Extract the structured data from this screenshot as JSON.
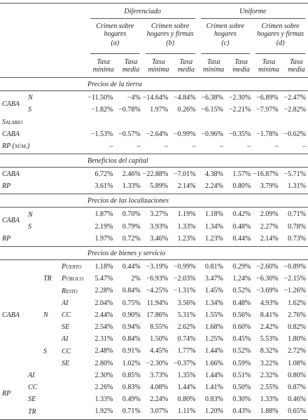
{
  "header": {
    "groups": [
      "Diferenciado",
      "Uniforme"
    ],
    "models": [
      {
        "title": "Crimen sobre hogares",
        "tag": "(a)"
      },
      {
        "title": "Crimen sobre hogares y firmas",
        "tag": "(b)"
      },
      {
        "title": "Crimen sobre hogares",
        "tag": "(c)"
      },
      {
        "title": "Crimen sobre hogares y firmas",
        "tag": "(d)"
      }
    ],
    "rates": [
      "Tasa mínima",
      "Tasa media"
    ]
  },
  "sections": [
    {
      "title": "Precios de la tierra",
      "groups": [
        {
          "label": "CABA",
          "children": [
            {
              "label": "N",
              "values": [
                "−11.50%",
                "−4%",
                "−14.64%",
                "−4.84%",
                "−6.38%",
                "−2.30%",
                "−6.89%",
                "−2.47%"
              ]
            },
            {
              "label": "S",
              "values": [
                "−1.82%",
                "−0.78%",
                "1.97%",
                "0.26%",
                "−6.15%",
                "−2.21%",
                "−7.97%",
                "−2.82%"
              ]
            }
          ]
        },
        {
          "label": "Salario"
        },
        {
          "label": "CABA",
          "values": [
            "−1.53%",
            "−0.57%",
            "−2.64%",
            "−0.99%",
            "−0.96%",
            "−0.35%",
            "−1.78%",
            "−0.62%"
          ]
        },
        {
          "label": "RP (núm.)",
          "values": [
            "–",
            "–",
            "–",
            "–",
            "–",
            "–",
            "–",
            "–"
          ]
        }
      ]
    },
    {
      "title": "Beneficios del capital",
      "groups": [
        {
          "label": "CABA",
          "values": [
            "6.72%",
            "2.46%",
            "−22.88%",
            "−7.01%",
            "4.38%",
            "1.57%",
            "−16.87%",
            "−5.71%"
          ]
        },
        {
          "label": "RP",
          "values": [
            "3.61%",
            "1.33%",
            "5.89%",
            "2.14%",
            "2.24%",
            "0.80%",
            "3.79%",
            "1.31%"
          ]
        }
      ]
    },
    {
      "title": "Precios de las localizaciones",
      "groups": [
        {
          "label": "CABA",
          "children": [
            {
              "label": "N",
              "values": [
                "1.87%",
                "0.70%",
                "3.27%",
                "1.19%",
                "1.18%",
                "0.42%",
                "2.09%",
                "0.71%"
              ]
            },
            {
              "label": "S",
              "values": [
                "2.19%",
                "0.79%",
                "3.93%",
                "1.33%",
                "1.34%",
                "0.48%",
                "2.27%",
                "0.78%"
              ]
            }
          ]
        },
        {
          "label": "RP",
          "values": [
            "1.97%",
            "0.72%",
            "3.46%",
            "1.23%",
            "1.23%",
            "0.44%",
            "2.14%",
            "0.73%"
          ]
        }
      ]
    },
    {
      "title": "Precios de bienes y servicio",
      "groups": [
        {
          "label": "CABA",
          "children": [
            {
              "label": "TR",
              "children": [
                {
                  "label": "Puerto",
                  "values": [
                    "1.18%",
                    "0.44%",
                    "−3.19%",
                    "−0.99%",
                    "0.81%",
                    "0.29%",
                    "−2.60%",
                    "−0.89%"
                  ]
                },
                {
                  "label": "Público",
                  "values": [
                    "5.47%",
                    "2%",
                    "−6.93%",
                    "−2.03%",
                    "3.47%",
                    "1.24%",
                    "−6.30%",
                    "−2.15%"
                  ]
                },
                {
                  "label": "Resto",
                  "values": [
                    "2.28%",
                    "0.84%",
                    "−4.25%",
                    "−1.31%",
                    "1.45%",
                    "0.52%",
                    "−3.69%",
                    "−1.26%"
                  ]
                }
              ]
            },
            {
              "label": "N",
              "children": [
                {
                  "label": "AI",
                  "values": [
                    "2.04%",
                    "0.75%",
                    "11.94%",
                    "3.56%",
                    "1.34%",
                    "0.48%",
                    "4.93%",
                    "1.62%"
                  ]
                },
                {
                  "label": "CC",
                  "values": [
                    "2.44%",
                    "0.90%",
                    "17.86%",
                    "5.31%",
                    "1.55%",
                    "0.56%",
                    "8.41%",
                    "2.76%"
                  ]
                },
                {
                  "label": "SE",
                  "values": [
                    "2.54%",
                    "0.94%",
                    "8.55%",
                    "2.62%",
                    "1.68%",
                    "0.60%",
                    "2.42%",
                    "0.82%"
                  ]
                }
              ]
            },
            {
              "label": "S",
              "children": [
                {
                  "label": "AI",
                  "values": [
                    "2.31%",
                    "0.84%",
                    "1.50%",
                    "0.74%",
                    "1.25%",
                    "0.45%",
                    "5.53%",
                    "1.80%"
                  ]
                },
                {
                  "label": "CC",
                  "values": [
                    "2.48%",
                    "0.91%",
                    "4.45%",
                    "1.77%",
                    "1.44%",
                    "0.52%",
                    "8.32%",
                    "2.72%"
                  ]
                },
                {
                  "label": "SE",
                  "values": [
                    "2.80%",
                    "1.02%",
                    "−2.30%",
                    "−0.37%",
                    "1.66%",
                    "0.59%",
                    "3.22%",
                    "1.08%"
                  ]
                }
              ]
            }
          ]
        },
        {
          "label": "RP",
          "children": [
            {
              "label": "AI",
              "values": [
                "2.30%",
                "0.85%",
                "3.73%",
                "1.35%",
                "1.44%",
                "0.51%",
                "2.32%",
                "0.80%"
              ]
            },
            {
              "label": "CC",
              "values": [
                "2.26%",
                "0.83%",
                "4.08%",
                "1.44%",
                "1.41%",
                "0.50%",
                "2.55%",
                "0.87%"
              ]
            },
            {
              "label": "SE",
              "values": [
                "1.33%",
                "0.49%",
                "2.24%",
                "0.80%",
                "0.83%",
                "0.30%",
                "1.33%",
                "0.46%"
              ]
            },
            {
              "label": "TR",
              "values": [
                "1.92%",
                "0.71%",
                "3.07%",
                "1.11%",
                "1.20%",
                "0.43%",
                "1.88%",
                "0.65%"
              ]
            }
          ]
        }
      ]
    }
  ]
}
